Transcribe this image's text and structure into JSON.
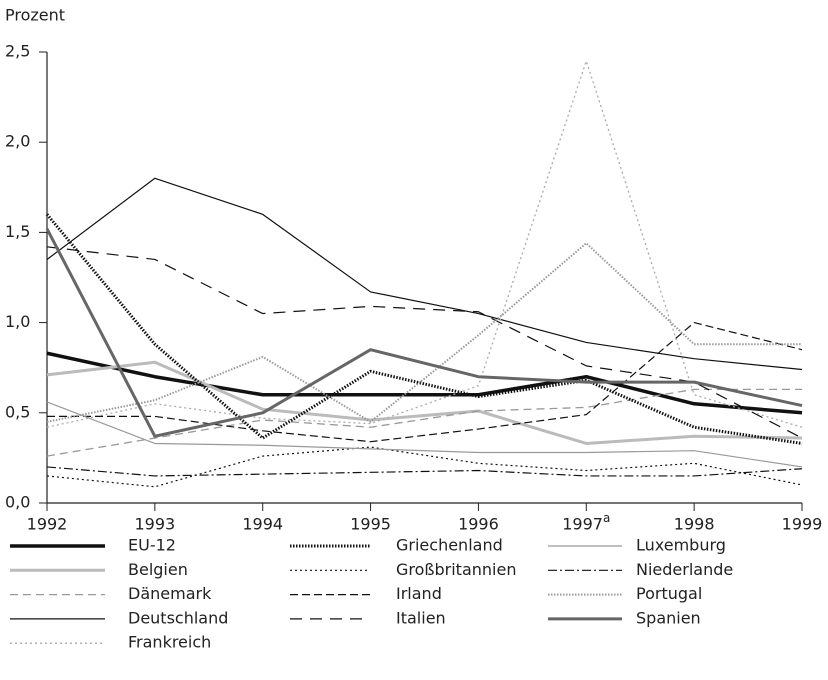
{
  "chart_data": {
    "type": "line",
    "y_axis_label": "Prozent",
    "categories": [
      "1992",
      "1993",
      "1994",
      "1995",
      "1996",
      "1997",
      "1998",
      "1999"
    ],
    "category_superscripts": [
      null,
      null,
      null,
      null,
      null,
      "a",
      null,
      null
    ],
    "ylim": [
      0,
      2.5
    ],
    "yticks": [
      {
        "value": 0,
        "label": "0,0"
      },
      {
        "value": 0.5,
        "label": "0,5"
      },
      {
        "value": 1,
        "label": "1,0"
      },
      {
        "value": 1.5,
        "label": "1,5"
      },
      {
        "value": 2,
        "label": "2,0"
      },
      {
        "value": 2.5,
        "label": "2,5"
      }
    ],
    "series": [
      {
        "name": "EU-12",
        "color": "#111111",
        "width": 3.5,
        "dash": "",
        "values": [
          0.83,
          0.7,
          0.6,
          0.6,
          0.6,
          0.7,
          0.55,
          0.5
        ]
      },
      {
        "name": "Belgien",
        "color": "#bbbbbb",
        "width": 3,
        "dash": "",
        "values": [
          0.71,
          0.78,
          0.52,
          0.46,
          0.51,
          0.33,
          0.37,
          0.36
        ]
      },
      {
        "name": "Dänemark",
        "color": "#999999",
        "width": 1.3,
        "dash": "8 5",
        "values": [
          0.26,
          0.36,
          0.46,
          0.42,
          0.51,
          0.53,
          0.63,
          0.63
        ]
      },
      {
        "name": "Deutschland",
        "color": "#111111",
        "width": 1.2,
        "dash": "",
        "values": [
          1.35,
          1.8,
          1.6,
          1.17,
          1.05,
          0.89,
          0.8,
          0.74
        ]
      },
      {
        "name": "Frankreich",
        "color": "#aaaaaa",
        "width": 1.3,
        "dash": "2 3",
        "values": [
          0.42,
          0.55,
          0.47,
          0.44,
          0.65,
          2.45,
          0.6,
          0.42
        ]
      },
      {
        "name": "Griechenland",
        "color": "#111111",
        "width": 3,
        "dash": "1.5 1.5",
        "values": [
          1.6,
          0.88,
          0.36,
          0.73,
          0.59,
          0.68,
          0.42,
          0.33
        ]
      },
      {
        "name": "Großbritannien",
        "color": "#111111",
        "width": 1.2,
        "dash": "2 3",
        "values": [
          0.15,
          0.09,
          0.26,
          0.31,
          0.22,
          0.18,
          0.22,
          0.1
        ]
      },
      {
        "name": "Irland",
        "color": "#111111",
        "width": 1.2,
        "dash": "8 4",
        "values": [
          0.48,
          0.48,
          0.4,
          0.34,
          0.41,
          0.49,
          1.0,
          0.85
        ]
      },
      {
        "name": "Italien",
        "color": "#111111",
        "width": 1.2,
        "dash": "12 8",
        "values": [
          1.42,
          1.35,
          1.05,
          1.09,
          1.06,
          0.76,
          0.67,
          0.36
        ]
      },
      {
        "name": "Luxemburg",
        "color": "#999999",
        "width": 1.2,
        "dash": "",
        "values": [
          0.56,
          0.33,
          0.32,
          0.3,
          0.28,
          0.28,
          0.29,
          0.2
        ]
      },
      {
        "name": "Niederlande",
        "color": "#111111",
        "width": 1.2,
        "dash": "9 3 2 3",
        "values": [
          0.2,
          0.15,
          0.16,
          0.17,
          0.18,
          0.15,
          0.15,
          0.19
        ]
      },
      {
        "name": "Portugal",
        "color": "#999999",
        "width": 2,
        "dash": "1.5 1.5",
        "values": [
          0.45,
          0.57,
          0.81,
          0.45,
          0.93,
          1.44,
          0.88,
          0.88
        ]
      },
      {
        "name": "Spanien",
        "color": "#666666",
        "width": 3,
        "dash": "",
        "values": [
          1.52,
          0.37,
          0.5,
          0.85,
          0.7,
          0.67,
          0.67,
          0.54
        ]
      }
    ]
  }
}
